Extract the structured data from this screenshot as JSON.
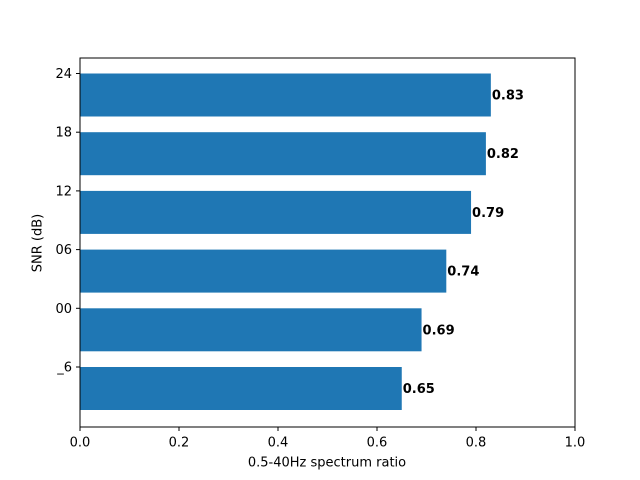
{
  "chart_data": {
    "type": "barh",
    "xlabel": "0.5-40Hz spectrum ratio",
    "ylabel": "SNR (dB)",
    "categories": [
      "_6",
      "00",
      "06",
      "12",
      "18",
      "24"
    ],
    "values": [
      0.65,
      0.69,
      0.74,
      0.79,
      0.82,
      0.83
    ],
    "color": "#1f77b4",
    "value_label_color": "#0000cc",
    "xlim": [
      0,
      1
    ],
    "xticks": [
      {
        "value": 0,
        "label": "0.0"
      },
      0.2,
      0.4,
      0.6,
      0.8,
      {
        "value": 1,
        "label": "1.0"
      }
    ]
  }
}
